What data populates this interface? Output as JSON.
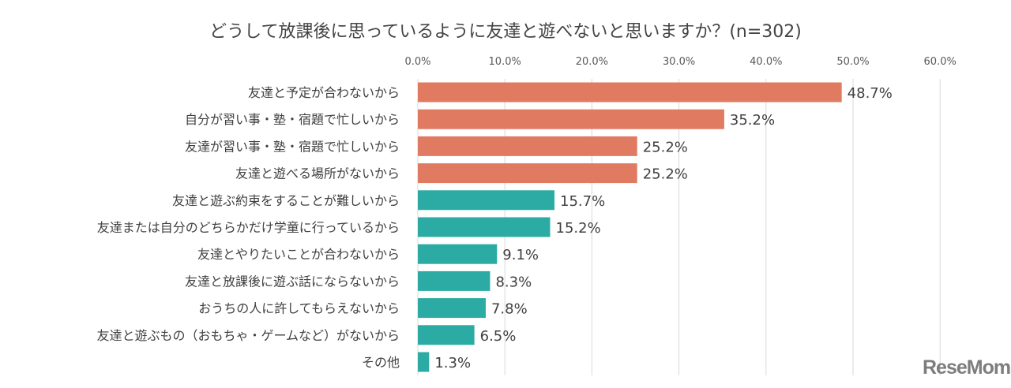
{
  "chart_data": {
    "type": "bar",
    "orientation": "horizontal",
    "title": "どうして放課後に思っているように友達と遊べないと思いますか？(n=302)",
    "categories": [
      "友達と予定が合わないから",
      "自分が習い事・塾・宿題で忙しいから",
      "友達が習い事・塾・宿題で忙しいから",
      "友達と遊べる場所がないから",
      "友達と遊ぶ約束をすることが難しいから",
      "友達または自分のどちらかだけ学童に行っているから",
      "友達とやりたいことが合わないから",
      "友達と放課後に遊ぶ話にならないから",
      "おうちの人に許してもらえないから",
      "友達と遊ぶもの（おもちゃ・ゲームなど）がないから",
      "その他"
    ],
    "values": [
      48.7,
      35.2,
      25.2,
      25.2,
      15.7,
      15.2,
      9.1,
      8.3,
      7.8,
      6.5,
      1.3
    ],
    "data_labels": [
      "48.7%",
      "35.2%",
      "25.2%",
      "25.2%",
      "15.7%",
      "15.2%",
      "9.1%",
      "8.3%",
      "7.8%",
      "6.5%",
      "1.3%"
    ],
    "highlight_count": 4,
    "xlim": [
      0,
      60
    ],
    "xticks": [
      "0.0%",
      "10.0%",
      "20.0%",
      "30.0%",
      "40.0%",
      "50.0%",
      "60.0%"
    ],
    "xaxis_position": "top",
    "grid": true,
    "colors": {
      "highlight": "#E07B62",
      "normal": "#2BABA3",
      "grid": "#d9d9d9"
    }
  },
  "watermark": "ReseMom"
}
